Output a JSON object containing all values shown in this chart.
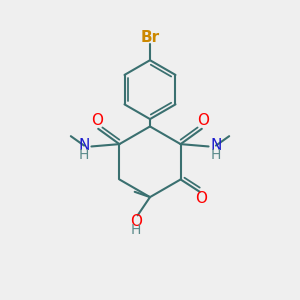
{
  "bg_color": "#efefef",
  "bond_color": "#3a7070",
  "bond_width": 1.5,
  "atom_colors": {
    "Br": "#cc8800",
    "O": "#ff0000",
    "N": "#1a1acd",
    "H": "#5a8a8a",
    "C": "#3a7070"
  }
}
